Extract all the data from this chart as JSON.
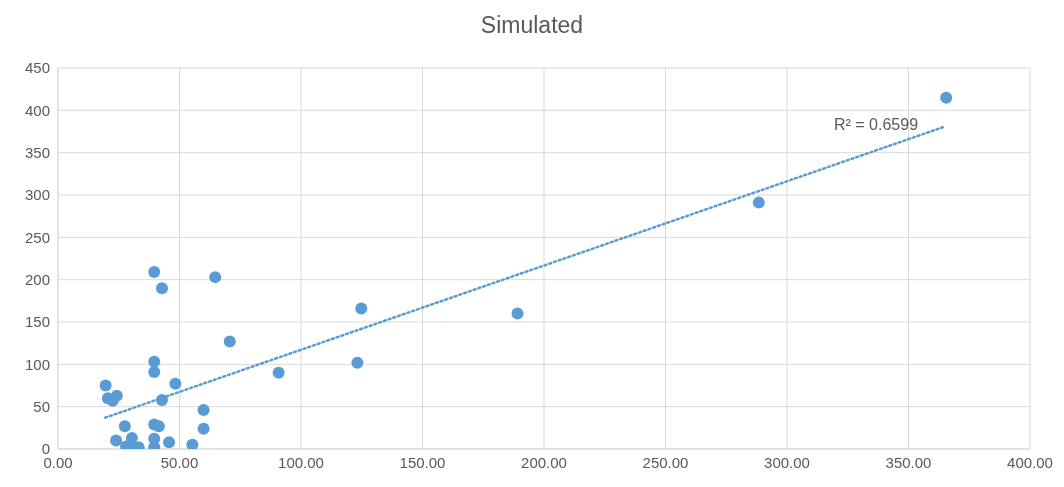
{
  "chart_data": {
    "type": "scatter",
    "title": "Simulated",
    "xlim": [
      0,
      400
    ],
    "xticks": [
      {
        "value": 0,
        "label": "0.00"
      },
      {
        "value": 50,
        "label": "50.00"
      },
      {
        "value": 100,
        "label": "100.00"
      },
      {
        "value": 150,
        "label": "150.00"
      },
      {
        "value": 200,
        "label": "200.00"
      },
      {
        "value": 250,
        "label": "250.00"
      },
      {
        "value": 300,
        "label": "300.00"
      },
      {
        "value": 350,
        "label": "350.00"
      },
      {
        "value": 400,
        "label": "400.00"
      }
    ],
    "ylim": [
      0,
      450
    ],
    "yticks": [
      0,
      50,
      100,
      150,
      200,
      250,
      300,
      350,
      400,
      450
    ],
    "grid": true,
    "series": [
      {
        "color": "#5b9bd5",
        "marker": "circle",
        "x": [
          39.6,
          42.8,
          64.7,
          70.7,
          39.6,
          39.6,
          90.8,
          19.6,
          48.3,
          20.5,
          24.2,
          22.5,
          42.8,
          59.9,
          59.9,
          27.5,
          39.6,
          41.5,
          23.9,
          30.4,
          39.6,
          45.7,
          55.3,
          28,
          29.7,
          33.2,
          39.6,
          124.8,
          123.2,
          189.1,
          288.4,
          365.5
        ],
        "values": [
          209,
          190,
          203,
          127,
          103,
          91,
          90,
          75,
          77,
          60,
          63,
          57,
          58,
          46,
          24,
          27,
          29,
          27,
          10,
          13,
          12,
          8,
          5,
          3,
          4,
          2,
          2,
          166,
          102,
          160,
          291,
          415
        ]
      },
      {
        "type": "line",
        "color": "#5b9bd5",
        "marker": "none",
        "line_style": "dotted",
        "x": [
          19.4,
          364.1
        ],
        "values": [
          37,
          380
        ]
      }
    ],
    "annotations": [
      "R² = 0.6599"
    ]
  }
}
